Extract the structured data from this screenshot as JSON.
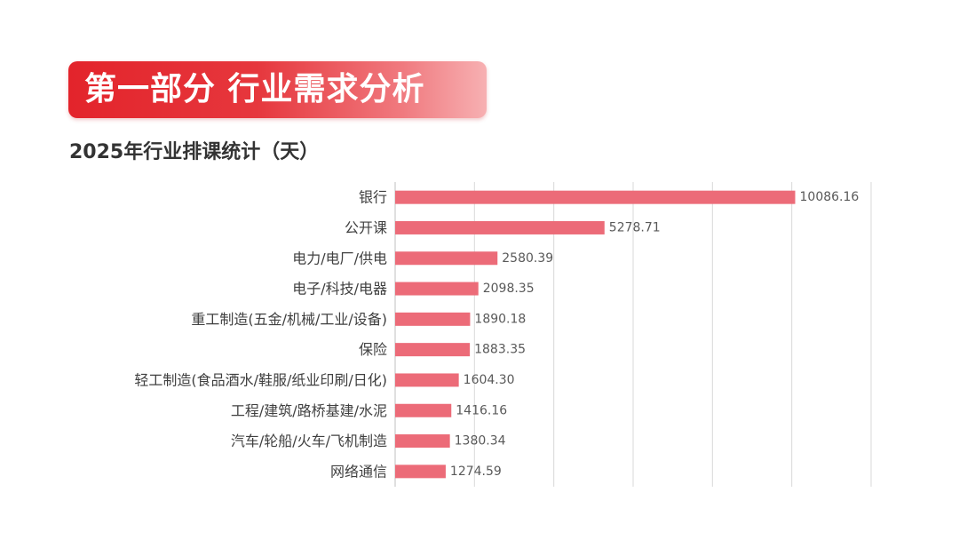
{
  "banner": {
    "text": "第一部分 行业需求分析"
  },
  "colors": {
    "bar": "#ec6b78",
    "banner_start": "#e3242b",
    "gridline": "#d9d9d9",
    "title_text": "#333333"
  },
  "chart_data": {
    "type": "bar",
    "orientation": "horizontal",
    "title": "2025年行业排课统计（天）",
    "xlim": [
      0,
      12000
    ],
    "grid": true,
    "categories": [
      "银行",
      "公开课",
      "电力/电厂/供电",
      "电子/科技/电器",
      "重工制造(五金/机械/工业/设备)",
      "保险",
      "轻工制造(食品酒水/鞋服/纸业印刷/日化)",
      "工程/建筑/路桥基建/水泥",
      "汽车/轮船/火车/飞机制造",
      "网络通信"
    ],
    "values": [
      10086.16,
      5278.71,
      2580.39,
      2098.35,
      1890.18,
      1883.35,
      1604.3,
      1416.16,
      1380.34,
      1274.59
    ],
    "value_labels": [
      "10086.16",
      "5278.71",
      "2580.39",
      "2098.35",
      "1890.18",
      "1883.35",
      "1604.30",
      "1416.16",
      "1380.34",
      "1274.59"
    ]
  }
}
